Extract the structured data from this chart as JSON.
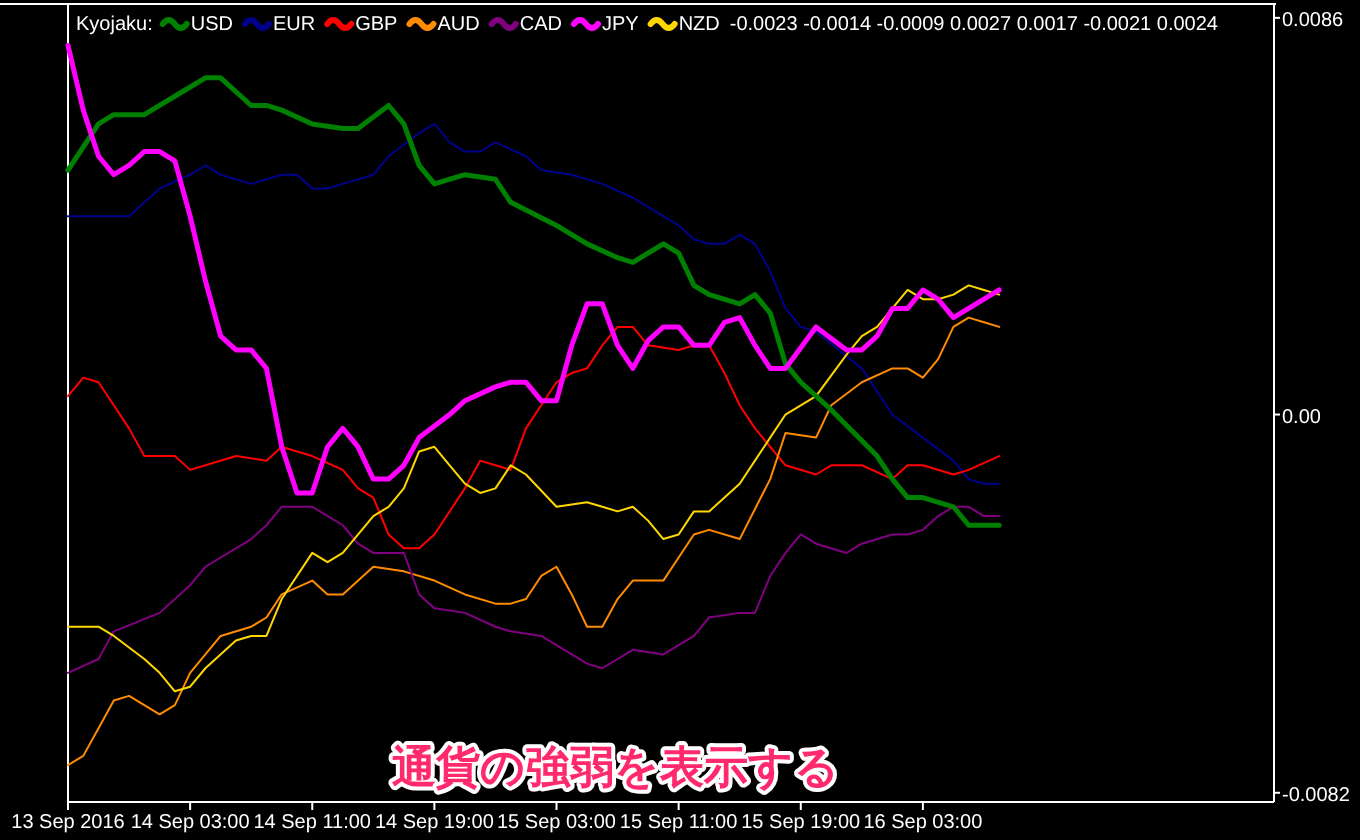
{
  "chart_data": {
    "type": "line",
    "title": "Kyojaku:",
    "legend": "top left",
    "annotations": [
      "-0.0023 -0.0014 -0.0009 0.0027 0.0017 -0.0021 0.0024",
      "通貨の強弱を表示する"
    ],
    "xlim": [
      "2016-09-13T19:00",
      "2016-09-17T02:00"
    ],
    "xticks": [
      {
        "value": "2016-09-13T19:00",
        "label": "13 Sep 2016"
      },
      {
        "value": "2016-09-14T03:00",
        "label": "14 Sep 03:00"
      },
      {
        "value": "2016-09-14T11:00",
        "label": "14 Sep 11:00"
      },
      {
        "value": "2016-09-14T19:00",
        "label": "14 Sep 19:00"
      },
      {
        "value": "2016-09-15T03:00",
        "label": "15 Sep 03:00"
      },
      {
        "value": "2016-09-15T11:00",
        "label": "15 Sep 11:00"
      },
      {
        "value": "2016-09-15T19:00",
        "label": "15 Sep 19:00"
      },
      {
        "value": "2016-09-16T03:00",
        "label": "16 Sep 03:00"
      }
    ],
    "ylim": [
      -0.0084,
      0.0089
    ],
    "yticks": [
      0.0086,
      {
        "value": 0,
        "label": "0.00"
      },
      -0.0082
    ],
    "series": [
      {
        "name": "USD",
        "color": "#008000",
        "x": [
          "2016-09-13T19:00",
          "2016-09-13T21:00",
          "2016-09-13T22:00",
          "2016-09-14T00:00",
          "2016-09-14T01:00",
          "2016-09-14T02:00",
          "2016-09-14T04:00",
          "2016-09-14T05:00",
          "2016-09-14T07:00",
          "2016-09-14T08:00",
          "2016-09-14T09:00",
          "2016-09-14T11:00",
          "2016-09-14T13:00",
          "2016-09-14T14:00",
          "2016-09-14T16:00",
          "2016-09-14T17:00",
          "2016-09-14T18:00",
          "2016-09-14T19:00",
          "2016-09-14T21:00",
          "2016-09-14T23:00",
          "2016-09-15T00:00",
          "2016-09-15T03:00",
          "2016-09-15T05:00",
          "2016-09-15T07:00",
          "2016-09-15T08:00",
          "2016-09-15T10:00",
          "2016-09-15T11:00",
          "2016-09-15T12:00",
          "2016-09-15T13:00",
          "2016-09-15T15:00",
          "2016-09-15T16:00",
          "2016-09-15T17:00",
          "2016-09-15T18:00",
          "2016-09-15T19:00",
          "2016-09-15T21:00",
          "2016-09-16T00:00",
          "2016-09-16T01:00",
          "2016-09-16T02:00",
          "2016-09-16T03:00",
          "2016-09-16T05:00",
          "2016-09-16T06:00",
          "2016-09-16T07:00",
          "2016-09-16T08:00"
        ],
        "values": [
          0.0053,
          0.0063,
          0.0065,
          0.0065,
          0.0067,
          0.0069,
          0.0073,
          0.0073,
          0.0067,
          0.0067,
          0.0066,
          0.0063,
          0.0062,
          0.0062,
          0.0067,
          0.0063,
          0.0054,
          0.005,
          0.0052,
          0.0051,
          0.0046,
          0.0041,
          0.0037,
          0.0034,
          0.0033,
          0.0037,
          0.0035,
          0.0028,
          0.0026,
          0.0024,
          0.0026,
          0.0022,
          0.0011,
          0.0007,
          0.0001,
          -0.0009,
          -0.0014,
          -0.0018,
          -0.0018,
          -0.002,
          -0.0024,
          -0.0024,
          -0.0024
        ]
      },
      {
        "name": "EUR",
        "color": "#00008b",
        "x": [
          "2016-09-13T19:00",
          "2016-09-13T21:00",
          "2016-09-13T23:00",
          "2016-09-14T01:00",
          "2016-09-14T03:00",
          "2016-09-14T04:00",
          "2016-09-14T05:00",
          "2016-09-14T07:00",
          "2016-09-14T08:00",
          "2016-09-14T09:00",
          "2016-09-14T10:00",
          "2016-09-14T11:00",
          "2016-09-14T12:00",
          "2016-09-14T13:00",
          "2016-09-14T15:00",
          "2016-09-14T16:00",
          "2016-09-14T18:00",
          "2016-09-14T19:00",
          "2016-09-14T20:00",
          "2016-09-14T21:00",
          "2016-09-14T22:00",
          "2016-09-14T23:00",
          "2016-09-15T01:00",
          "2016-09-15T02:00",
          "2016-09-15T04:00",
          "2016-09-15T06:00",
          "2016-09-15T08:00",
          "2016-09-15T09:00",
          "2016-09-15T11:00",
          "2016-09-15T12:00",
          "2016-09-15T13:00",
          "2016-09-15T14:00",
          "2016-09-15T15:00",
          "2016-09-15T16:00",
          "2016-09-15T17:00",
          "2016-09-15T18:00",
          "2016-09-15T19:00",
          "2016-09-15T20:00",
          "2016-09-15T23:00",
          "2016-09-16T01:00",
          "2016-09-16T03:00",
          "2016-09-16T05:00",
          "2016-09-16T06:00",
          "2016-09-16T07:00",
          "2016-09-16T08:00"
        ],
        "values": [
          0.0043,
          0.0043,
          0.0043,
          0.0049,
          0.0052,
          0.0054,
          0.0052,
          0.005,
          0.0051,
          0.0052,
          0.0052,
          0.0049,
          0.0049,
          0.005,
          0.0052,
          0.0056,
          0.0061,
          0.0063,
          0.0059,
          0.0057,
          0.0057,
          0.0059,
          0.0056,
          0.0053,
          0.0052,
          0.005,
          0.0047,
          0.0045,
          0.0041,
          0.0038,
          0.0037,
          0.0037,
          0.0039,
          0.0037,
          0.0031,
          0.0023,
          0.0019,
          0.0018,
          0.001,
          0,
          -0.0005,
          -0.001,
          -0.0014,
          -0.0015,
          -0.0015
        ]
      },
      {
        "name": "GBP",
        "color": "#ff0000",
        "x": [
          "2016-09-13T19:00",
          "2016-09-13T20:00",
          "2016-09-13T21:00",
          "2016-09-13T23:00",
          "2016-09-14T00:00",
          "2016-09-14T01:00",
          "2016-09-14T02:00",
          "2016-09-14T03:00",
          "2016-09-14T04:00",
          "2016-09-14T06:00",
          "2016-09-14T08:00",
          "2016-09-14T09:00",
          "2016-09-14T10:00",
          "2016-09-14T11:00",
          "2016-09-14T13:00",
          "2016-09-14T14:00",
          "2016-09-14T15:00",
          "2016-09-14T16:00",
          "2016-09-14T17:00",
          "2016-09-14T18:00",
          "2016-09-14T19:00",
          "2016-09-14T21:00",
          "2016-09-14T22:00",
          "2016-09-14T23:00",
          "2016-09-15T00:00",
          "2016-09-15T01:00",
          "2016-09-15T02:00",
          "2016-09-15T03:00",
          "2016-09-15T04:00",
          "2016-09-15T05:00",
          "2016-09-15T06:00",
          "2016-09-15T07:00",
          "2016-09-15T08:00",
          "2016-09-15T09:00",
          "2016-09-15T11:00",
          "2016-09-15T12:00",
          "2016-09-15T13:00",
          "2016-09-15T14:00",
          "2016-09-15T15:00",
          "2016-09-15T16:00",
          "2016-09-15T18:00",
          "2016-09-15T20:00",
          "2016-09-15T21:00",
          "2016-09-15T23:00",
          "2016-09-16T01:00",
          "2016-09-16T02:00",
          "2016-09-16T03:00",
          "2016-09-16T05:00",
          "2016-09-16T06:00",
          "2016-09-16T08:00"
        ],
        "values": [
          0.0004,
          0.0008,
          0.0007,
          -0.0003,
          -0.0009,
          -0.0009,
          -0.0009,
          -0.0012,
          -0.0011,
          -0.0009,
          -0.001,
          -0.0007,
          -0.0008,
          -0.0009,
          -0.0012,
          -0.0016,
          -0.0018,
          -0.0026,
          -0.0029,
          -0.0029,
          -0.0026,
          -0.0016,
          -0.001,
          -0.0011,
          -0.0012,
          -0.0003,
          0.0002,
          0.0007,
          0.0009,
          0.001,
          0.0015,
          0.0019,
          0.0019,
          0.0015,
          0.0014,
          0.0015,
          0.0015,
          0.0009,
          0.0002,
          -0.0003,
          -0.0011,
          -0.0013,
          -0.0011,
          -0.0011,
          -0.0014,
          -0.0011,
          -0.0011,
          -0.0013,
          -0.0012,
          -0.0009
        ]
      },
      {
        "name": "AUD",
        "color": "#ff8c00",
        "x": [
          "2016-09-13T19:00",
          "2016-09-13T20:00",
          "2016-09-13T21:00",
          "2016-09-13T22:00",
          "2016-09-13T23:00",
          "2016-09-14T01:00",
          "2016-09-14T02:00",
          "2016-09-14T03:00",
          "2016-09-14T05:00",
          "2016-09-14T07:00",
          "2016-09-14T08:00",
          "2016-09-14T09:00",
          "2016-09-14T11:00",
          "2016-09-14T12:00",
          "2016-09-14T13:00",
          "2016-09-14T15:00",
          "2016-09-14T17:00",
          "2016-09-14T19:00",
          "2016-09-14T21:00",
          "2016-09-14T23:00",
          "2016-09-15T00:00",
          "2016-09-15T01:00",
          "2016-09-15T02:00",
          "2016-09-15T03:00",
          "2016-09-15T04:00",
          "2016-09-15T05:00",
          "2016-09-15T06:00",
          "2016-09-15T07:00",
          "2016-09-15T08:00",
          "2016-09-15T10:00",
          "2016-09-15T11:00",
          "2016-09-15T12:00",
          "2016-09-15T13:00",
          "2016-09-15T15:00",
          "2016-09-15T17:00",
          "2016-09-15T18:00",
          "2016-09-15T20:00",
          "2016-09-15T21:00",
          "2016-09-15T23:00",
          "2016-09-16T01:00",
          "2016-09-16T02:00",
          "2016-09-16T03:00",
          "2016-09-16T04:00",
          "2016-09-16T05:00",
          "2016-09-16T06:00",
          "2016-09-16T07:00",
          "2016-09-16T08:00"
        ],
        "values": [
          -0.0076,
          -0.0074,
          -0.0068,
          -0.0062,
          -0.0061,
          -0.0065,
          -0.0063,
          -0.0056,
          -0.0048,
          -0.0046,
          -0.0044,
          -0.0039,
          -0.0036,
          -0.0039,
          -0.0039,
          -0.0033,
          -0.0034,
          -0.0036,
          -0.0039,
          -0.0041,
          -0.0041,
          -0.004,
          -0.0035,
          -0.0033,
          -0.0039,
          -0.0046,
          -0.0046,
          -0.004,
          -0.0036,
          -0.0036,
          -0.0031,
          -0.0026,
          -0.0025,
          -0.0027,
          -0.0014,
          -0.0004,
          -0.0005,
          0.0002,
          0.0007,
          0.001,
          0.001,
          0.0008,
          0.0012,
          0.0019,
          0.0021,
          0.002,
          0.0019
        ]
      },
      {
        "name": "CAD",
        "color": "#800080",
        "x": [
          "2016-09-13T19:00",
          "2016-09-13T21:00",
          "2016-09-13T22:00",
          "2016-09-14T01:00",
          "2016-09-14T03:00",
          "2016-09-14T04:00",
          "2016-09-14T07:00",
          "2016-09-14T08:00",
          "2016-09-14T09:00",
          "2016-09-14T11:00",
          "2016-09-14T13:00",
          "2016-09-14T14:00",
          "2016-09-14T15:00",
          "2016-09-14T17:00",
          "2016-09-14T18:00",
          "2016-09-14T19:00",
          "2016-09-14T21:00",
          "2016-09-14T23:00",
          "2016-09-15T00:00",
          "2016-09-15T02:00",
          "2016-09-15T03:00",
          "2016-09-15T05:00",
          "2016-09-15T06:00",
          "2016-09-15T08:00",
          "2016-09-15T10:00",
          "2016-09-15T11:00",
          "2016-09-15T12:00",
          "2016-09-15T13:00",
          "2016-09-15T15:00",
          "2016-09-15T16:00",
          "2016-09-15T17:00",
          "2016-09-15T18:00",
          "2016-09-15T19:00",
          "2016-09-15T20:00",
          "2016-09-15T22:00",
          "2016-09-15T23:00",
          "2016-09-16T01:00",
          "2016-09-16T02:00",
          "2016-09-16T03:00",
          "2016-09-16T04:00",
          "2016-09-16T05:00",
          "2016-09-16T06:00",
          "2016-09-16T07:00",
          "2016-09-16T08:00"
        ],
        "values": [
          -0.0056,
          -0.0053,
          -0.0047,
          -0.0043,
          -0.0037,
          -0.0033,
          -0.0027,
          -0.0024,
          -0.002,
          -0.002,
          -0.0024,
          -0.0028,
          -0.003,
          -0.003,
          -0.0039,
          -0.0042,
          -0.0043,
          -0.0046,
          -0.0047,
          -0.0048,
          -0.005,
          -0.0054,
          -0.0055,
          -0.0051,
          -0.0052,
          -0.005,
          -0.0048,
          -0.0044,
          -0.0043,
          -0.0043,
          -0.0035,
          -0.003,
          -0.0026,
          -0.0028,
          -0.003,
          -0.0028,
          -0.0026,
          -0.0026,
          -0.0025,
          -0.0022,
          -0.002,
          -0.002,
          -0.0022,
          -0.0022
        ]
      },
      {
        "name": "JPY",
        "color": "#ff00ff",
        "x": [
          "2016-09-13T19:00",
          "2016-09-13T20:00",
          "2016-09-13T21:00",
          "2016-09-13T22:00",
          "2016-09-13T23:00",
          "2016-09-14T00:00",
          "2016-09-14T01:00",
          "2016-09-14T02:00",
          "2016-09-14T03:00",
          "2016-09-14T04:00",
          "2016-09-14T05:00",
          "2016-09-14T06:00",
          "2016-09-14T07:00",
          "2016-09-14T08:00",
          "2016-09-14T09:00",
          "2016-09-14T10:00",
          "2016-09-14T11:00",
          "2016-09-14T12:00",
          "2016-09-14T13:00",
          "2016-09-14T14:00",
          "2016-09-14T15:00",
          "2016-09-14T16:00",
          "2016-09-14T17:00",
          "2016-09-14T18:00",
          "2016-09-14T20:00",
          "2016-09-14T21:00",
          "2016-09-14T23:00",
          "2016-09-15T00:00",
          "2016-09-15T01:00",
          "2016-09-15T02:00",
          "2016-09-15T03:00",
          "2016-09-15T04:00",
          "2016-09-15T05:00",
          "2016-09-15T06:00",
          "2016-09-15T07:00",
          "2016-09-15T08:00",
          "2016-09-15T09:00",
          "2016-09-15T10:00",
          "2016-09-15T11:00",
          "2016-09-15T12:00",
          "2016-09-15T13:00",
          "2016-09-15T14:00",
          "2016-09-15T15:00",
          "2016-09-15T16:00",
          "2016-09-15T17:00",
          "2016-09-15T18:00",
          "2016-09-15T20:00",
          "2016-09-15T22:00",
          "2016-09-15T23:00",
          "2016-09-16T00:00",
          "2016-09-16T01:00",
          "2016-09-16T02:00",
          "2016-09-16T03:00",
          "2016-09-16T04:00",
          "2016-09-16T05:00",
          "2016-09-16T07:00",
          "2016-09-16T08:00"
        ],
        "values": [
          0.008,
          0.0066,
          0.0056,
          0.0052,
          0.0054,
          0.0057,
          0.0057,
          0.0055,
          0.0043,
          0.0029,
          0.0017,
          0.0014,
          0.0014,
          0.001,
          -0.0007,
          -0.0017,
          -0.0017,
          -0.0007,
          -0.0003,
          -0.0007,
          -0.0014,
          -0.0014,
          -0.0011,
          -0.0005,
          0,
          0.0003,
          0.0006,
          0.0007,
          0.0007,
          0.0003,
          0.0003,
          0.0015,
          0.0024,
          0.0024,
          0.0015,
          0.001,
          0.0016,
          0.0019,
          0.0019,
          0.0015,
          0.0015,
          0.002,
          0.0021,
          0.0015,
          0.001,
          0.001,
          0.0019,
          0.0014,
          0.0014,
          0.0017,
          0.0023,
          0.0023,
          0.0027,
          0.0025,
          0.0021,
          0.0025,
          0.0027
        ]
      },
      {
        "name": "NZD",
        "color": "#ffd700",
        "x": [
          "2016-09-13T19:00",
          "2016-09-13T21:00",
          "2016-09-13T22:00",
          "2016-09-14T00:00",
          "2016-09-14T01:00",
          "2016-09-14T02:00",
          "2016-09-14T03:00",
          "2016-09-14T04:00",
          "2016-09-14T06:00",
          "2016-09-14T07:00",
          "2016-09-14T08:00",
          "2016-09-14T09:00",
          "2016-09-14T11:00",
          "2016-09-14T12:00",
          "2016-09-14T13:00",
          "2016-09-14T15:00",
          "2016-09-14T16:00",
          "2016-09-14T17:00",
          "2016-09-14T18:00",
          "2016-09-14T19:00",
          "2016-09-14T20:00",
          "2016-09-14T21:00",
          "2016-09-14T22:00",
          "2016-09-14T23:00",
          "2016-09-15T00:00",
          "2016-09-15T01:00",
          "2016-09-15T03:00",
          "2016-09-15T05:00",
          "2016-09-15T06:00",
          "2016-09-15T07:00",
          "2016-09-15T08:00",
          "2016-09-15T09:00",
          "2016-09-15T10:00",
          "2016-09-15T11:00",
          "2016-09-15T12:00",
          "2016-09-15T13:00",
          "2016-09-15T15:00",
          "2016-09-15T16:00",
          "2016-09-15T17:00",
          "2016-09-15T18:00",
          "2016-09-15T20:00",
          "2016-09-15T22:00",
          "2016-09-15T23:00",
          "2016-09-16T00:00",
          "2016-09-16T01:00",
          "2016-09-16T02:00",
          "2016-09-16T03:00",
          "2016-09-16T04:00",
          "2016-09-16T05:00",
          "2016-09-16T06:00",
          "2016-09-16T07:00",
          "2016-09-16T08:00"
        ],
        "values": [
          -0.0046,
          -0.0046,
          -0.0048,
          -0.0053,
          -0.0056,
          -0.006,
          -0.0059,
          -0.0055,
          -0.0049,
          -0.0048,
          -0.0048,
          -0.004,
          -0.003,
          -0.0032,
          -0.003,
          -0.0022,
          -0.002,
          -0.0016,
          -0.0008,
          -0.0007,
          -0.0011,
          -0.0015,
          -0.0017,
          -0.0016,
          -0.0011,
          -0.0013,
          -0.002,
          -0.0019,
          -0.002,
          -0.0021,
          -0.002,
          -0.0023,
          -0.0027,
          -0.0026,
          -0.0021,
          -0.0021,
          -0.0015,
          -0.001,
          -0.0005,
          0,
          0.0004,
          0.0013,
          0.0017,
          0.0019,
          0.0023,
          0.0027,
          0.0025,
          0.0025,
          0.0026,
          0.0028,
          0.0027,
          0.0026
        ]
      }
    ]
  }
}
